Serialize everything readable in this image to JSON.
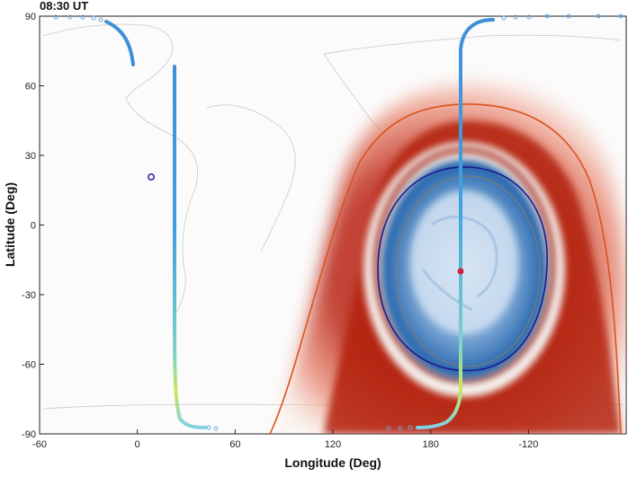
{
  "chart_data": {
    "type": "heatmap",
    "title": "08:30 UT",
    "xlabel": "Longitude (Deg)",
    "ylabel": "Latitude (Deg)",
    "x_ticks": [
      "-60",
      "0",
      "60",
      "120",
      "180",
      "-120"
    ],
    "y_ticks": [
      "90",
      "60",
      "30",
      "0",
      "-30",
      "-60",
      "-90"
    ],
    "xlim": [
      -60,
      300
    ],
    "ylim": [
      -90,
      90
    ],
    "grid": false,
    "colors": {
      "positive": "#b3200e",
      "negative": "#1f5fa8",
      "outer_contour": "#d9531e",
      "inner_contour": "#1b1b8f",
      "gray_contour": "#7a7a7a"
    },
    "center_marker": {
      "lon": 182,
      "lat": -20
    },
    "site_marker": {
      "lon": 5,
      "lat": 21
    },
    "satellite_tracks": [
      {
        "lon": [
          -12,
          -8,
          -5,
          -4,
          -3
        ],
        "lat": [
          88,
          86,
          82,
          76,
          69
        ]
      },
      {
        "lon": [
          18,
          18,
          18,
          19,
          23,
          30
        ],
        "lat": [
          67,
          0,
          -60,
          -80,
          -86,
          -88
        ]
      },
      {
        "lon": [
          190,
          185,
          183,
          183,
          183,
          182,
          178,
          170
        ],
        "lat": [
          88,
          84,
          75,
          20,
          -20,
          -60,
          -82,
          -88
        ]
      }
    ],
    "contours": [
      {
        "name": "outer",
        "lon": [
          72,
          95,
          110,
          130,
          160,
          200,
          235,
          250,
          268,
          285
        ],
        "lat": [
          -88,
          -80,
          -40,
          20,
          48,
          53,
          40,
          5,
          -40,
          -82
        ]
      },
      {
        "name": "inner",
        "lon": [
          140,
          150,
          170,
          200,
          220,
          228,
          220,
          195,
          165,
          145,
          140
        ],
        "lat": [
          -20,
          15,
          25,
          22,
          5,
          -25,
          -50,
          -60,
          -58,
          -40,
          -20
        ]
      }
    ]
  }
}
